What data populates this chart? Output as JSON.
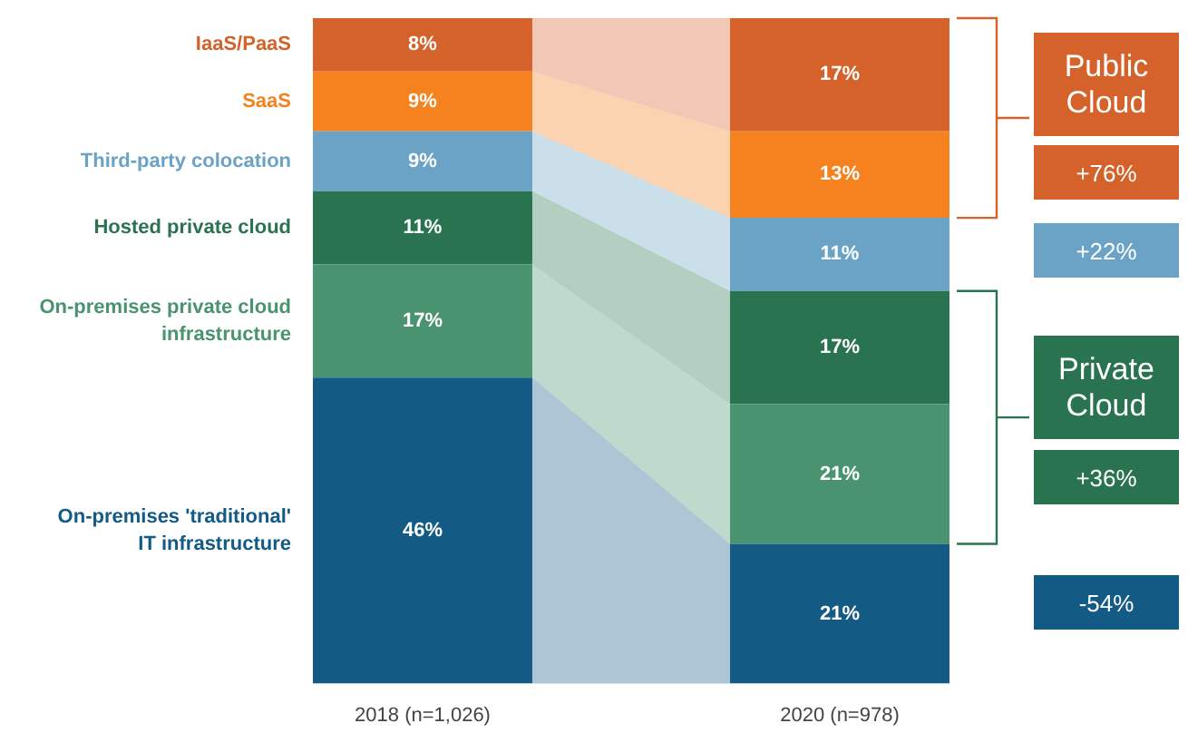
{
  "chart_data": {
    "type": "bar",
    "stacked": true,
    "categories": [
      "2018 (n=1,026)",
      "2020 (n=978)"
    ],
    "legend": false,
    "grid": false,
    "series": [
      {
        "name": "On-premises 'traditional' IT infrastructure",
        "color": "#135a85",
        "values": [
          46,
          21
        ],
        "value_labels": [
          "46%",
          "21%"
        ]
      },
      {
        "name": "On-premises private cloud infrastructure",
        "color": "#4a9370",
        "values": [
          17,
          21
        ],
        "value_labels": [
          "17%",
          "21%"
        ]
      },
      {
        "name": "Hosted private cloud",
        "color": "#2a7350",
        "values": [
          11,
          17
        ],
        "value_labels": [
          "11%",
          "17%"
        ]
      },
      {
        "name": "Third-party colocation",
        "color": "#6ba3c7",
        "values": [
          9,
          11
        ],
        "value_labels": [
          "9%",
          "11%"
        ]
      },
      {
        "name": "SaaS",
        "color": "#f5821f",
        "values": [
          9,
          13
        ],
        "value_labels": [
          "9%",
          "13%"
        ]
      },
      {
        "name": "IaaS/PaaS",
        "color": "#d4622a",
        "values": [
          8,
          17
        ],
        "value_labels": [
          "8%",
          "17%"
        ]
      }
    ],
    "annotations": [
      "Public Cloud",
      "+76%",
      "+22%",
      "Private Cloud",
      "+36%",
      "-54%"
    ]
  }
}
